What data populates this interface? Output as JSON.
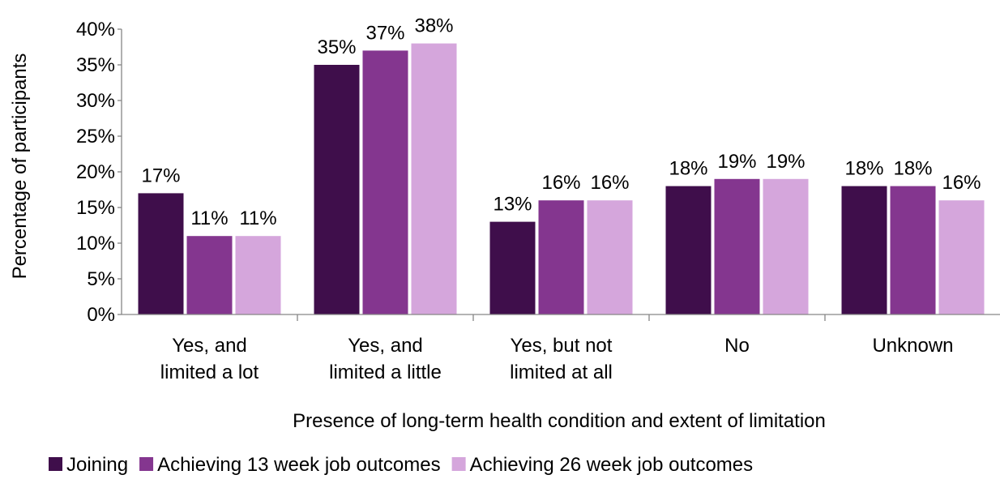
{
  "chart_data": {
    "type": "bar",
    "title": "",
    "xlabel": "Presence of long-term health condition and extent of limitation",
    "ylabel": "Percentage of participants",
    "ylim": [
      0,
      40
    ],
    "yticks": [
      "0%",
      "5%",
      "10%",
      "15%",
      "20%",
      "25%",
      "30%",
      "35%",
      "40%"
    ],
    "categories": [
      [
        "Yes, and",
        "limited a lot"
      ],
      [
        "Yes, and",
        "limited a little"
      ],
      [
        "Yes, but not",
        "limited at all"
      ],
      [
        "No"
      ],
      [
        "Unknown"
      ]
    ],
    "series": [
      {
        "name": "Joining",
        "color": "#3f0e4b",
        "values": [
          17,
          35,
          13,
          18,
          18
        ],
        "labels": [
          "17%",
          "35%",
          "13%",
          "18%",
          "18%"
        ]
      },
      {
        "name": "Achieving 13 week job outcomes",
        "color": "#84368f",
        "values": [
          11,
          37,
          16,
          19,
          18
        ],
        "labels": [
          "11%",
          "37%",
          "16%",
          "19%",
          "18%"
        ]
      },
      {
        "name": "Achieving 26 week job outcomes",
        "color": "#d5a6dc",
        "values": [
          11,
          38,
          16,
          19,
          16
        ],
        "labels": [
          "11%",
          "38%",
          "16%",
          "19%",
          "16%"
        ]
      }
    ],
    "grid": false,
    "legend_position": "bottom"
  }
}
